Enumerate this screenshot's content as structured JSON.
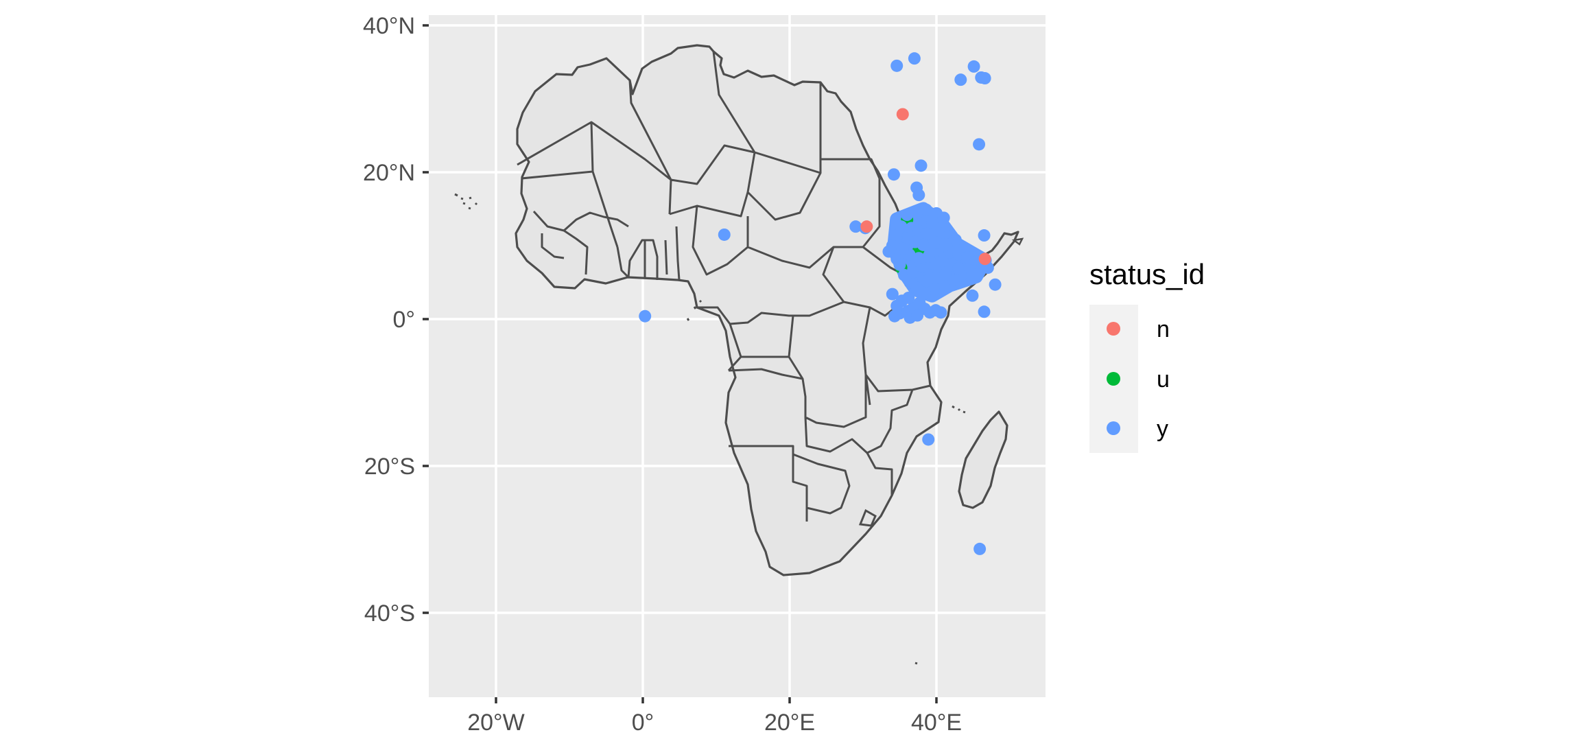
{
  "chart_data": {
    "type": "scatter",
    "map": "Africa country boundaries",
    "crs": "longitude/latitude",
    "x_ticks": [
      {
        "value": -20,
        "label": "20°W"
      },
      {
        "value": 0,
        "label": "0°"
      },
      {
        "value": 20,
        "label": "20°E"
      },
      {
        "value": 40,
        "label": "40°E"
      }
    ],
    "y_ticks": [
      {
        "value": 40,
        "label": "40°N"
      },
      {
        "value": 20,
        "label": "20°N"
      },
      {
        "value": 0,
        "label": "0°"
      },
      {
        "value": -20,
        "label": "20°S"
      },
      {
        "value": -40,
        "label": "40°S"
      }
    ],
    "xlim": [
      -29,
      55
    ],
    "ylim": [
      -51,
      41.5
    ],
    "grid": true,
    "legend": {
      "title": "status_id",
      "position": "right",
      "entries": [
        {
          "key": "n",
          "color": "#F8766D"
        },
        {
          "key": "u",
          "color": "#00BA38"
        },
        {
          "key": "y",
          "color": "#619CFF"
        }
      ]
    },
    "series": [
      {
        "name": "n",
        "color": "#F8766D",
        "points": [
          [
            35.4,
            27.9
          ],
          [
            30.5,
            12.6
          ],
          [
            46.6,
            8.2
          ]
        ]
      },
      {
        "name": "u",
        "color": "#00BA38",
        "points": [
          [
            35.2,
            7.0
          ],
          [
            36.0,
            13.5
          ],
          [
            37.5,
            9.2
          ]
        ]
      },
      {
        "name": "y",
        "color": "#619CFF",
        "points": [
          [
            34.6,
            34.5
          ],
          [
            37.0,
            35.5
          ],
          [
            43.3,
            32.6
          ],
          [
            45.1,
            34.4
          ],
          [
            46.1,
            32.9
          ],
          [
            46.6,
            32.8
          ],
          [
            45.8,
            23.8
          ],
          [
            37.9,
            20.9
          ],
          [
            34.2,
            19.7
          ],
          [
            37.3,
            17.9
          ],
          [
            37.6,
            16.9
          ],
          [
            11.1,
            11.5
          ],
          [
            0.3,
            0.4
          ],
          [
            29.0,
            12.6
          ],
          [
            30.3,
            12.4
          ],
          [
            34.5,
            13.0
          ],
          [
            35.2,
            12.6
          ],
          [
            34.0,
            10.0
          ],
          [
            33.5,
            9.2
          ],
          [
            34.6,
            8.2
          ],
          [
            35.0,
            7.4
          ],
          [
            36.0,
            14.2
          ],
          [
            37.2,
            14.6
          ],
          [
            38.6,
            14.9
          ],
          [
            40.0,
            14.4
          ],
          [
            41.0,
            13.8
          ],
          [
            39.5,
            13.2
          ],
          [
            36.6,
            12.4
          ],
          [
            37.6,
            12.0
          ],
          [
            38.6,
            11.6
          ],
          [
            40.2,
            11.8
          ],
          [
            41.6,
            11.3
          ],
          [
            42.6,
            10.8
          ],
          [
            36.2,
            11.0
          ],
          [
            37.1,
            10.5
          ],
          [
            38.2,
            10.1
          ],
          [
            39.3,
            9.7
          ],
          [
            40.5,
            9.4
          ],
          [
            41.8,
            9.1
          ],
          [
            43.0,
            8.8
          ],
          [
            44.2,
            8.4
          ],
          [
            45.3,
            7.8
          ],
          [
            46.3,
            7.4
          ],
          [
            47.0,
            7.0
          ],
          [
            44.6,
            6.6
          ],
          [
            45.6,
            6.1
          ],
          [
            43.3,
            5.9
          ],
          [
            42.1,
            5.3
          ],
          [
            40.9,
            4.7
          ],
          [
            39.6,
            4.1
          ],
          [
            38.4,
            3.6
          ],
          [
            37.3,
            4.3
          ],
          [
            36.4,
            5.0
          ],
          [
            35.6,
            6.0
          ],
          [
            36.8,
            6.4
          ],
          [
            38.1,
            7.1
          ],
          [
            39.4,
            7.6
          ],
          [
            40.8,
            7.9
          ],
          [
            42.0,
            7.3
          ],
          [
            43.0,
            6.9
          ],
          [
            41.2,
            6.1
          ],
          [
            39.9,
            5.6
          ],
          [
            38.7,
            5.2
          ],
          [
            37.6,
            8.3
          ],
          [
            36.3,
            8.8
          ],
          [
            35.4,
            9.6
          ],
          [
            38.9,
            8.5
          ],
          [
            40.1,
            10.4
          ],
          [
            41.3,
            10.2
          ],
          [
            44.9,
            3.2
          ],
          [
            46.5,
            11.4
          ],
          [
            46.5,
            1.0
          ],
          [
            48.0,
            4.7
          ],
          [
            34.3,
            0.4
          ],
          [
            35.0,
            0.8
          ],
          [
            36.1,
            1.1
          ],
          [
            36.9,
            1.6
          ],
          [
            37.7,
            2.2
          ],
          [
            38.4,
            1.4
          ],
          [
            39.1,
            0.9
          ],
          [
            39.9,
            1.2
          ],
          [
            40.6,
            0.9
          ],
          [
            36.4,
            0.2
          ],
          [
            37.4,
            0.5
          ],
          [
            34.6,
            1.8
          ],
          [
            35.3,
            2.5
          ],
          [
            36.2,
            2.9
          ],
          [
            34.0,
            3.4
          ],
          [
            38.9,
            -16.4
          ],
          [
            45.9,
            -31.3
          ]
        ]
      }
    ]
  }
}
